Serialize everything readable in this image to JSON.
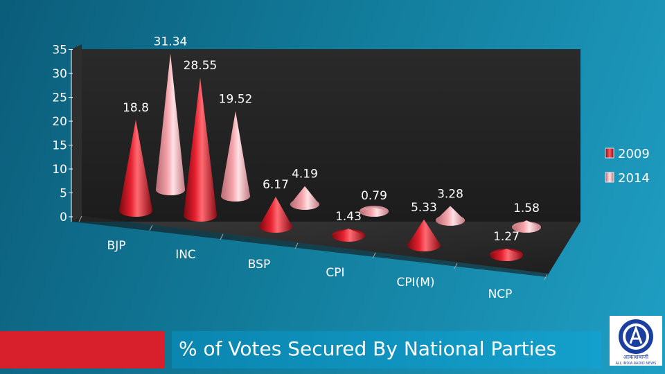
{
  "chart_data": {
    "type": "bar",
    "style": "3d-cone",
    "categories": [
      "BJP",
      "INC",
      "BSP",
      "CPI",
      "CPI(M)",
      "NCP"
    ],
    "series": [
      {
        "name": "2009",
        "color": "#e5202e",
        "values": [
          18.8,
          28.55,
          6.17,
          1.43,
          5.33,
          1.27
        ]
      },
      {
        "name": "2014",
        "color": "#f4a3aa",
        "values": [
          31.34,
          19.52,
          4.19,
          0.79,
          3.28,
          1.58
        ]
      }
    ],
    "y_ticks": [
      "0",
      "5",
      "10",
      "15",
      "20",
      "25",
      "30",
      "35"
    ],
    "ylim": [
      0,
      35
    ],
    "legend_position": "right"
  },
  "footer": {
    "title": "% of Votes Secured By National Parties"
  },
  "logo": {
    "icon": "air-logo-icon",
    "script_text": "आकाशवाणी",
    "caption": "ALL INDIA RADIO NEWS"
  }
}
